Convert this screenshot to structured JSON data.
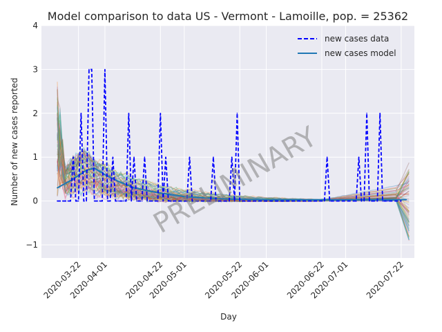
{
  "chart_data": {
    "type": "line",
    "title": "Model comparison to data US - Vermont - Lamoille, pop. = 25362",
    "xlabel": "Day",
    "ylabel": "Number of new cases reported",
    "watermark": "PRELIMINARY",
    "ylim": [
      -1.3,
      4.0
    ],
    "yticks": [
      -1,
      0,
      1,
      2,
      3,
      4
    ],
    "ytick_labels": [
      "−1",
      "0",
      "1",
      "2",
      "3",
      "4"
    ],
    "xlim": [
      "2020-03-08",
      "2020-07-27"
    ],
    "xtick_labels": [
      "2020-03-22",
      "2020-04-01",
      "2020-04-22",
      "2020-05-01",
      "2020-05-22",
      "2020-06-01",
      "2020-06-22",
      "2020-07-01",
      "2020-07-22"
    ],
    "grid": true,
    "legend_position": "top-right",
    "colors": {
      "data": "#0000ff",
      "model": "#1f77b4",
      "background": "#eaeaf2",
      "grid": "#ffffff"
    },
    "series": [
      {
        "name": "new cases data",
        "style": "dashed",
        "x": [
          "2020-03-14",
          "2020-03-15",
          "2020-03-16",
          "2020-03-17",
          "2020-03-18",
          "2020-03-19",
          "2020-03-20",
          "2020-03-21",
          "2020-03-22",
          "2020-03-23",
          "2020-03-24",
          "2020-03-25",
          "2020-03-26",
          "2020-03-27",
          "2020-03-28",
          "2020-03-29",
          "2020-03-30",
          "2020-03-31",
          "2020-04-01",
          "2020-04-02",
          "2020-04-03",
          "2020-04-04",
          "2020-04-05",
          "2020-04-06",
          "2020-04-07",
          "2020-04-08",
          "2020-04-09",
          "2020-04-10",
          "2020-04-11",
          "2020-04-12",
          "2020-04-13",
          "2020-04-14",
          "2020-04-15",
          "2020-04-16",
          "2020-04-17",
          "2020-04-18",
          "2020-04-19",
          "2020-04-20",
          "2020-04-21",
          "2020-04-22",
          "2020-04-23",
          "2020-04-24",
          "2020-04-25",
          "2020-04-26",
          "2020-05-02",
          "2020-05-03",
          "2020-05-04",
          "2020-05-11",
          "2020-05-12",
          "2020-05-13",
          "2020-05-18",
          "2020-05-19",
          "2020-05-20",
          "2020-05-21",
          "2020-05-22",
          "2020-06-23",
          "2020-06-24",
          "2020-06-25",
          "2020-07-05",
          "2020-07-06",
          "2020-07-07",
          "2020-07-08",
          "2020-07-09",
          "2020-07-10",
          "2020-07-11",
          "2020-07-12",
          "2020-07-13",
          "2020-07-14",
          "2020-07-15",
          "2020-07-16",
          "2020-07-17",
          "2020-07-22"
        ],
        "values": [
          0,
          0,
          0,
          0,
          0,
          0,
          1,
          0,
          0,
          2,
          0,
          0,
          3,
          3,
          0,
          0,
          0,
          0,
          3,
          0,
          0,
          1,
          0,
          0,
          0,
          0,
          0,
          2,
          0,
          1,
          0,
          0,
          0,
          1,
          0,
          0,
          0,
          0,
          0,
          2,
          0,
          1,
          0,
          0,
          0,
          1,
          0,
          0,
          1,
          0,
          0,
          1,
          0,
          2,
          0,
          0,
          1,
          0,
          0,
          1,
          0,
          0,
          2,
          0,
          0,
          0,
          0,
          2,
          0,
          0,
          0,
          0
        ]
      },
      {
        "name": "new cases model",
        "style": "solid",
        "x": [
          "2020-03-14",
          "2020-03-20",
          "2020-03-25",
          "2020-03-28",
          "2020-04-01",
          "2020-04-06",
          "2020-04-12",
          "2020-04-20",
          "2020-05-01",
          "2020-05-15",
          "2020-06-01",
          "2020-06-20",
          "2020-07-01",
          "2020-07-10",
          "2020-07-20",
          "2020-07-24"
        ],
        "values": [
          0.3,
          0.5,
          0.7,
          0.75,
          0.6,
          0.45,
          0.3,
          0.2,
          0.1,
          0.05,
          0.03,
          0.03,
          0.03,
          0.03,
          0.03,
          0.03
        ]
      }
    ]
  }
}
